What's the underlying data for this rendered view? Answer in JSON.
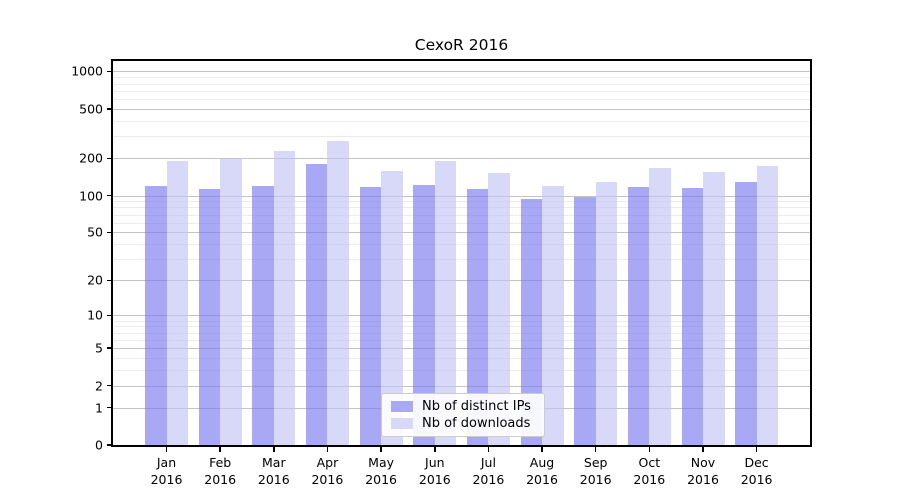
{
  "chart_data": {
    "type": "bar",
    "title": "CexoR 2016",
    "categories": [
      "Jan 2016",
      "Feb 2016",
      "Mar 2016",
      "Apr 2016",
      "May 2016",
      "Jun 2016",
      "Jul 2016",
      "Aug 2016",
      "Sep 2016",
      "Oct 2016",
      "Nov 2016",
      "Dec 2016"
    ],
    "series": [
      {
        "name": "Nb of distinct IPs",
        "color": "#a8a8f5",
        "fill": "rgba(121,121,240,0.65)",
        "values": [
          120,
          113,
          120,
          179,
          118,
          122,
          112,
          94,
          97,
          118,
          116,
          129
        ]
      },
      {
        "name": "Nb of downloads",
        "color": "#d8d8f8",
        "fill": "rgba(195,195,244,0.65)",
        "values": [
          191,
          201,
          230,
          274,
          157,
          190,
          152,
          119,
          128,
          168,
          154,
          172
        ]
      }
    ],
    "y_ticks": [
      0,
      1,
      2,
      5,
      10,
      20,
      50,
      100,
      200,
      500,
      1000
    ],
    "y_scale": "log1p",
    "ylim": [
      0,
      1220
    ],
    "xlabel": "",
    "ylabel": "",
    "grid": "horizontal major and minor gridlines",
    "legend_position": "lower center inside plot"
  },
  "colors": {
    "background": "#ffffff",
    "axis": "#000000",
    "text": "#000000",
    "major_grid": "#c4c4c4",
    "minor_grid": "#ececec",
    "legend_border": "#cccccc"
  }
}
